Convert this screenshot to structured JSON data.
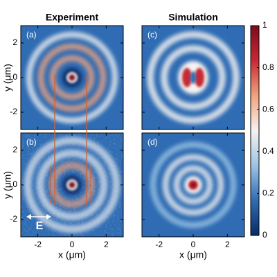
{
  "chart_data": [
    {
      "type": "heatmap",
      "title": "Experiment",
      "panel_label": "(a)",
      "xlim": [
        -3,
        3
      ],
      "ylim": [
        -3,
        3
      ],
      "xticks": [
        -2,
        0,
        2
      ],
      "yticks": [
        -2,
        0,
        2
      ],
      "ylabel": "y (μm)"
    },
    {
      "type": "heatmap",
      "panel_label": "(b)",
      "xlim": [
        -3,
        3
      ],
      "ylim": [
        -3,
        3
      ],
      "xticks": [
        -2,
        0,
        2
      ],
      "yticks": [
        -2,
        0,
        2
      ],
      "xlabel": "x (μm)",
      "ylabel": "y (μm)",
      "annotation": "E"
    },
    {
      "type": "heatmap",
      "title": "Simulation",
      "panel_label": "(c)",
      "xlim": [
        -3,
        3
      ],
      "ylim": [
        -3,
        3
      ],
      "xticks": [
        -2,
        0,
        2
      ],
      "yticks": [
        -2,
        0,
        2
      ]
    },
    {
      "type": "heatmap",
      "panel_label": "(d)",
      "xlim": [
        -3,
        3
      ],
      "ylim": [
        -3,
        3
      ],
      "xticks": [
        -2,
        0,
        2
      ],
      "yticks": [
        -2,
        0,
        2
      ],
      "xlabel": "x (μm)"
    },
    {
      "type": "colorbar",
      "colors": [
        "#0b2a66",
        "#2f6cb3",
        "#9cc5e4",
        "#f5f3f1",
        "#f0a27e",
        "#c62a35",
        "#7c0a1c"
      ],
      "ylim": [
        0,
        1
      ],
      "yticks": [
        0,
        0.2,
        0.4,
        0.6,
        0.8,
        1
      ]
    }
  ]
}
